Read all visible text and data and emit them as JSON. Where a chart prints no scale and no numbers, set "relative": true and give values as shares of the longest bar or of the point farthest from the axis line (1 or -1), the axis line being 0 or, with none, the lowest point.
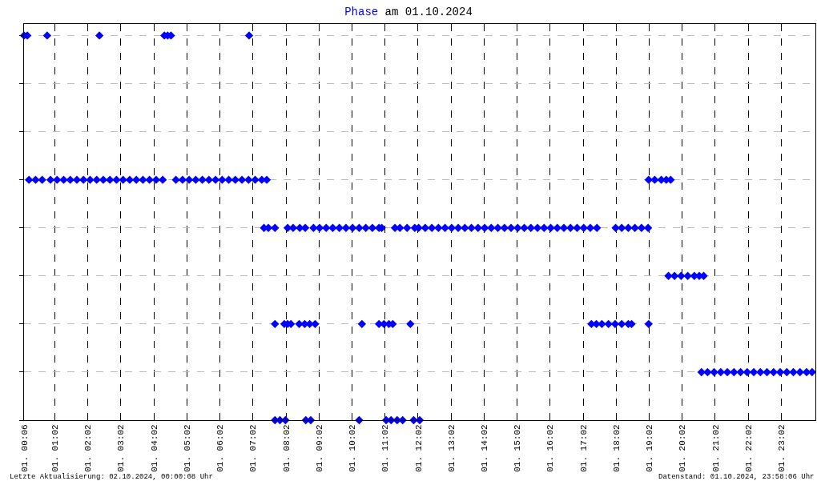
{
  "chart_data": {
    "type": "scatter",
    "title": "Phase am 01.10.2024",
    "annotations": [
      "Letzte Aktualisierung: 02.10.2024, 00:00:08 Uhr",
      "Datenstand: 01.10.2024, 23:58:06 Uhr"
    ],
    "series": [
      {
        "color": "#0000ff",
        "x": [
          "2024-10-01T00:15",
          "2024-10-01T00:27",
          "2024-10-01T00:39",
          "2024-10-01T00:54",
          "2024-10-01T01:06",
          "2024-10-01T01:18",
          "2024-10-01T01:30",
          "2024-10-01T01:42",
          "2024-10-01T01:54",
          "2024-10-01T02:06",
          "2024-10-01T02:18",
          "2024-10-01T02:30",
          "2024-10-01T02:42",
          "2024-10-01T02:54",
          "2024-10-01T03:06",
          "2024-10-01T03:18",
          "2024-10-01T03:30",
          "2024-10-01T03:42",
          "2024-10-01T03:54",
          "2024-10-01T04:06",
          "2024-10-01T04:18",
          "2024-10-01T04:42",
          "2024-10-01T04:54",
          "2024-10-01T05:06",
          "2024-10-01T05:18",
          "2024-10-01T05:30",
          "2024-10-01T05:42",
          "2024-10-01T05:54",
          "2024-10-01T06:06",
          "2024-10-01T06:18",
          "2024-10-01T06:30",
          "2024-10-01T06:42",
          "2024-10-01T06:54",
          "2024-10-01T07:06",
          "2024-10-01T07:18",
          "2024-10-01T07:27",
          "2024-10-01T00:06",
          "2024-10-01T00:12",
          "2024-10-01T00:48",
          "2024-10-01T02:23",
          "2024-10-01T04:21",
          "2024-10-01T04:27",
          "2024-10-01T04:33",
          "2024-10-01T06:55",
          "2024-10-01T07:22",
          "2024-10-01T07:30",
          "2024-10-01T07:42",
          "2024-10-01T08:05",
          "2024-10-01T08:15",
          "2024-10-01T08:27",
          "2024-10-01T08:37",
          "2024-10-01T08:52",
          "2024-10-01T09:03",
          "2024-10-01T09:15",
          "2024-10-01T09:27",
          "2024-10-01T09:39",
          "2024-10-01T09:51",
          "2024-10-01T10:03",
          "2024-10-01T10:15",
          "2024-10-01T10:27",
          "2024-10-01T10:39",
          "2024-10-01T10:51",
          "2024-10-01T10:56",
          "2024-10-01T11:20",
          "2024-10-01T11:29",
          "2024-10-01T11:42",
          "2024-10-01T11:56",
          "2024-10-01T12:03",
          "2024-10-01T12:15",
          "2024-10-01T12:27",
          "2024-10-01T12:39",
          "2024-10-01T12:51",
          "2024-10-01T13:03",
          "2024-10-01T13:15",
          "2024-10-01T13:27",
          "2024-10-01T13:39",
          "2024-10-01T13:51",
          "2024-10-01T14:03",
          "2024-10-01T14:15",
          "2024-10-01T14:27",
          "2024-10-01T14:39",
          "2024-10-01T14:51",
          "2024-10-01T15:03",
          "2024-10-01T15:15",
          "2024-10-01T15:27",
          "2024-10-01T15:39",
          "2024-10-01T15:51",
          "2024-10-01T16:03",
          "2024-10-01T16:15",
          "2024-10-01T16:27",
          "2024-10-01T16:39",
          "2024-10-01T16:51",
          "2024-10-01T17:03",
          "2024-10-01T17:15",
          "2024-10-01T17:27",
          "2024-10-01T18:01",
          "2024-10-01T18:12",
          "2024-10-01T18:24",
          "2024-10-01T18:36",
          "2024-10-01T18:48",
          "2024-10-01T19:00",
          "2024-10-01T07:42",
          "2024-10-01T07:59",
          "2024-10-01T08:05",
          "2024-10-01T08:11",
          "2024-10-01T08:26",
          "2024-10-01T08:36",
          "2024-10-01T08:45",
          "2024-10-01T08:55",
          "2024-10-01T10:20",
          "2024-10-01T10:51",
          "2024-10-01T11:00",
          "2024-10-01T11:09",
          "2024-10-01T11:16",
          "2024-10-01T11:48",
          "2024-10-01T17:17",
          "2024-10-01T17:26",
          "2024-10-01T17:36",
          "2024-10-01T17:48",
          "2024-10-01T18:00",
          "2024-10-01T18:12",
          "2024-10-01T18:24",
          "2024-10-01T18:30",
          "2024-10-01T19:01",
          "2024-10-01T07:42",
          "2024-10-01T07:51",
          "2024-10-01T08:01",
          "2024-10-01T08:38",
          "2024-10-01T08:47",
          "2024-10-01T10:15",
          "2024-10-01T11:04",
          "2024-10-01T11:13",
          "2024-10-01T11:24",
          "2024-10-01T11:34",
          "2024-10-01T11:54",
          "2024-10-01T12:05",
          "2024-10-01T19:01",
          "2024-10-01T19:12",
          "2024-10-01T19:24",
          "2024-10-01T19:33",
          "2024-10-01T19:41",
          "2024-10-01T19:37",
          "2024-10-01T19:48",
          "2024-10-01T20:00",
          "2024-10-01T20:12",
          "2024-10-01T20:24",
          "2024-10-01T20:33",
          "2024-10-01T20:41",
          "2024-10-01T20:37",
          "2024-10-01T20:48",
          "2024-10-01T21:00",
          "2024-10-01T21:12",
          "2024-10-01T21:24",
          "2024-10-01T21:36",
          "2024-10-01T21:48",
          "2024-10-01T22:00",
          "2024-10-01T22:12",
          "2024-10-01T22:24",
          "2024-10-01T22:36",
          "2024-10-01T22:48",
          "2024-10-01T23:00",
          "2024-10-01T23:12",
          "2024-10-01T23:24",
          "2024-10-01T23:36",
          "2024-10-01T23:48",
          "2024-10-01T23:58"
        ],
        "values": [
          0.625,
          0.625,
          0.625,
          0.625,
          0.625,
          0.625,
          0.625,
          0.625,
          0.625,
          0.625,
          0.625,
          0.625,
          0.625,
          0.625,
          0.625,
          0.625,
          0.625,
          0.625,
          0.625,
          0.625,
          0.625,
          0.625,
          0.625,
          0.625,
          0.625,
          0.625,
          0.625,
          0.625,
          0.625,
          0.625,
          0.625,
          0.625,
          0.625,
          0.625,
          0.625,
          0.625,
          1,
          1,
          1,
          1,
          1,
          1,
          1,
          1,
          0.5,
          0.5,
          0.5,
          0.5,
          0.5,
          0.5,
          0.5,
          0.5,
          0.5,
          0.5,
          0.5,
          0.5,
          0.5,
          0.5,
          0.5,
          0.5,
          0.5,
          0.5,
          0.5,
          0.5,
          0.5,
          0.5,
          0.5,
          0.5,
          0.5,
          0.5,
          0.5,
          0.5,
          0.5,
          0.5,
          0.5,
          0.5,
          0.5,
          0.5,
          0.5,
          0.5,
          0.5,
          0.5,
          0.5,
          0.5,
          0.5,
          0.5,
          0.5,
          0.5,
          0.5,
          0.5,
          0.5,
          0.5,
          0.5,
          0.5,
          0.5,
          0.5,
          0.5,
          0.5,
          0.5,
          0.5,
          0.5,
          0.25,
          0.25,
          0.25,
          0.25,
          0.25,
          0.25,
          0.25,
          0.25,
          0.25,
          0.25,
          0.25,
          0.25,
          0.25,
          0.25,
          0.25,
          0.25,
          0.25,
          0.25,
          0.25,
          0.25,
          0.25,
          0.25,
          0.25,
          0,
          0,
          0,
          0,
          0,
          0,
          0,
          0,
          0,
          0,
          0,
          0,
          0.625,
          0.625,
          0.625,
          0.625,
          0.625,
          0.375,
          0.375,
          0.375,
          0.375,
          0.375,
          0.375,
          0.375,
          0.125,
          0.125,
          0.125,
          0.125,
          0.125,
          0.125,
          0.125,
          0.125,
          0.125,
          0.125,
          0.125,
          0.125,
          0.125,
          0.125,
          0.125,
          0.125,
          0.125,
          0.125
        ]
      }
    ],
    "xlim": [
      "2024-10-01T00:06",
      "2024-10-02T00:04"
    ],
    "xticks": [
      {
        "value": "2024-10-01T00:06",
        "label": "01. 00:06"
      },
      {
        "value": "2024-10-01T01:02",
        "label": "01. 01:02"
      },
      {
        "value": "2024-10-01T02:02",
        "label": "01. 02:02"
      },
      {
        "value": "2024-10-01T03:02",
        "label": "01. 03:02"
      },
      {
        "value": "2024-10-01T04:02",
        "label": "01. 04:02"
      },
      {
        "value": "2024-10-01T05:02",
        "label": "01. 05:02"
      },
      {
        "value": "2024-10-01T06:02",
        "label": "01. 06:02"
      },
      {
        "value": "2024-10-01T07:02",
        "label": "01. 07:02"
      },
      {
        "value": "2024-10-01T08:02",
        "label": "01. 08:02"
      },
      {
        "value": "2024-10-01T09:02",
        "label": "01. 09:02"
      },
      {
        "value": "2024-10-01T10:02",
        "label": "01. 10:02"
      },
      {
        "value": "2024-10-01T11:02",
        "label": "01. 11:02"
      },
      {
        "value": "2024-10-01T12:02",
        "label": "01. 12:02"
      },
      {
        "value": "2024-10-01T13:02",
        "label": "01. 13:02"
      },
      {
        "value": "2024-10-01T14:02",
        "label": "01. 14:02"
      },
      {
        "value": "2024-10-01T15:02",
        "label": "01. 15:02"
      },
      {
        "value": "2024-10-01T16:02",
        "label": "01. 16:02"
      },
      {
        "value": "2024-10-01T17:02",
        "label": "01. 17:02"
      },
      {
        "value": "2024-10-01T18:02",
        "label": "01. 18:02"
      },
      {
        "value": "2024-10-01T19:02",
        "label": "01. 19:02"
      },
      {
        "value": "2024-10-01T20:02",
        "label": "01. 20:02"
      },
      {
        "value": "2024-10-01T21:02",
        "label": "01. 21:02"
      },
      {
        "value": "2024-10-01T22:02",
        "label": "01. 22:02"
      },
      {
        "value": "2024-10-01T23:02",
        "label": "01. 23:02"
      }
    ],
    "relative": true,
    "tick_labels": "x",
    "grid": true,
    "marker": "diamond"
  }
}
